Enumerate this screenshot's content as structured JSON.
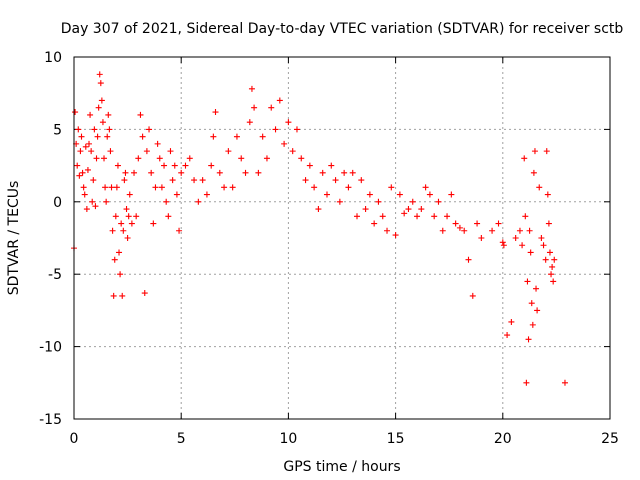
{
  "chart_data": {
    "type": "scatter",
    "title": "Day 307 of 2021, Sidereal Day-to-day VTEC variation (SDTVAR) for receiver sctb",
    "xlabel": "GPS time / hours",
    "ylabel": "SDTVAR / TECUs",
    "xlim": [
      0,
      25
    ],
    "ylim": [
      -15,
      10
    ],
    "xticks": [
      0,
      5,
      10,
      15,
      20,
      25
    ],
    "yticks": [
      -15,
      -10,
      -5,
      0,
      5,
      10
    ],
    "xtick_labels": [
      "0",
      "5",
      "10",
      "15",
      "20",
      "25"
    ],
    "ytick_labels": [
      "-15",
      "-10",
      "-5",
      "0",
      "5",
      "10"
    ],
    "grid": true,
    "marker": "+",
    "color": "#ff0000",
    "series": [
      {
        "name": "SDTVAR",
        "x": [
          0.0,
          0.05,
          0.1,
          0.15,
          0.2,
          0.25,
          0.3,
          0.35,
          0.4,
          0.45,
          0.5,
          0.55,
          0.6,
          0.65,
          0.7,
          0.75,
          0.8,
          0.85,
          0.9,
          0.95,
          1.0,
          1.05,
          1.1,
          1.15,
          1.2,
          1.25,
          1.3,
          1.35,
          1.4,
          1.45,
          1.5,
          1.55,
          1.6,
          1.65,
          1.7,
          1.75,
          1.8,
          1.85,
          1.9,
          1.95,
          2.0,
          2.05,
          2.1,
          2.15,
          2.2,
          2.25,
          2.3,
          2.35,
          2.4,
          2.45,
          2.5,
          2.55,
          2.6,
          2.7,
          2.8,
          2.9,
          3.0,
          3.1,
          3.2,
          3.3,
          3.4,
          3.5,
          3.6,
          3.7,
          3.8,
          3.9,
          4.0,
          4.1,
          4.2,
          4.3,
          4.4,
          4.5,
          4.6,
          4.7,
          4.8,
          4.9,
          5.0,
          5.2,
          5.4,
          5.6,
          5.8,
          6.0,
          6.2,
          6.4,
          6.5,
          6.6,
          6.8,
          7.0,
          7.2,
          7.4,
          7.6,
          7.8,
          8.0,
          8.2,
          8.3,
          8.4,
          8.6,
          8.8,
          9.0,
          9.2,
          9.4,
          9.6,
          9.8,
          10.0,
          10.2,
          10.4,
          10.6,
          10.8,
          11.0,
          11.2,
          11.4,
          11.6,
          11.8,
          12.0,
          12.2,
          12.4,
          12.6,
          12.8,
          13.0,
          13.2,
          13.4,
          13.6,
          13.8,
          14.0,
          14.2,
          14.4,
          14.6,
          14.8,
          15.0,
          15.2,
          15.4,
          15.6,
          15.8,
          16.0,
          16.2,
          16.4,
          16.6,
          16.8,
          17.0,
          17.2,
          17.4,
          17.6,
          17.8,
          18.0,
          18.2,
          18.4,
          18.6,
          18.8,
          19.0,
          19.5,
          19.8,
          20.0,
          20.05,
          20.2,
          20.4,
          20.6,
          20.8,
          20.9,
          21.0,
          21.05,
          21.1,
          21.15,
          21.2,
          21.25,
          21.3,
          21.35,
          21.4,
          21.45,
          21.5,
          21.55,
          21.6,
          21.7,
          21.8,
          21.9,
          22.0,
          22.05,
          22.1,
          22.15,
          22.2,
          22.25,
          22.3,
          22.35,
          22.4,
          22.9
        ],
        "y": [
          -3.2,
          6.2,
          4.0,
          2.5,
          5.0,
          1.8,
          3.5,
          4.5,
          2.0,
          1.0,
          0.5,
          3.8,
          -0.5,
          2.2,
          4.0,
          6.0,
          3.5,
          0.0,
          1.5,
          5.0,
          -0.3,
          3.0,
          4.5,
          6.5,
          8.8,
          8.2,
          7.0,
          5.5,
          3.0,
          1.0,
          0.0,
          4.5,
          6.0,
          5.0,
          3.5,
          1.0,
          -2.0,
          -6.5,
          -4.0,
          -1.0,
          1.0,
          2.5,
          -3.5,
          -5.0,
          -1.5,
          -6.5,
          -2.0,
          1.5,
          2.0,
          -0.5,
          -2.5,
          -1.0,
          0.5,
          -1.5,
          2.0,
          -1.0,
          3.0,
          6.0,
          4.5,
          -6.3,
          3.5,
          5.0,
          2.0,
          -1.5,
          1.0,
          4.0,
          3.0,
          1.0,
          2.5,
          0.0,
          -1.0,
          3.5,
          1.5,
          2.5,
          0.5,
          -2.0,
          2.0,
          2.5,
          3.0,
          1.5,
          0.0,
          1.5,
          0.5,
          2.5,
          4.5,
          6.2,
          2.0,
          1.0,
          3.5,
          1.0,
          4.5,
          3.0,
          2.0,
          5.5,
          7.8,
          6.5,
          2.0,
          4.5,
          3.0,
          6.5,
          5.0,
          7.0,
          4.0,
          5.5,
          3.5,
          5.0,
          3.0,
          1.5,
          2.5,
          1.0,
          -0.5,
          2.0,
          0.5,
          2.5,
          1.5,
          0.0,
          2.0,
          1.0,
          2.0,
          -1.0,
          1.5,
          -0.5,
          0.5,
          -1.5,
          0.0,
          -1.0,
          -2.0,
          1.0,
          -2.3,
          0.5,
          -0.8,
          -0.5,
          0.0,
          -1.0,
          -0.5,
          1.0,
          0.5,
          -1.0,
          0.0,
          -2.0,
          -1.0,
          0.5,
          -1.5,
          -1.8,
          -2.0,
          -4.0,
          -6.5,
          -1.5,
          -2.5,
          -2.0,
          -1.5,
          -2.8,
          -3.0,
          -9.2,
          -8.3,
          -2.5,
          -2.0,
          -3.0,
          3.0,
          -1.0,
          -12.5,
          -5.5,
          -9.5,
          -2.0,
          -3.5,
          -7.0,
          -8.5,
          2.0,
          3.5,
          -6.0,
          -7.5,
          1.0,
          -2.5,
          -3.0,
          -4.0,
          3.5,
          0.5,
          -1.5,
          -3.5,
          -5.0,
          -4.5,
          -5.5,
          -4.0,
          -12.5
        ]
      }
    ]
  }
}
